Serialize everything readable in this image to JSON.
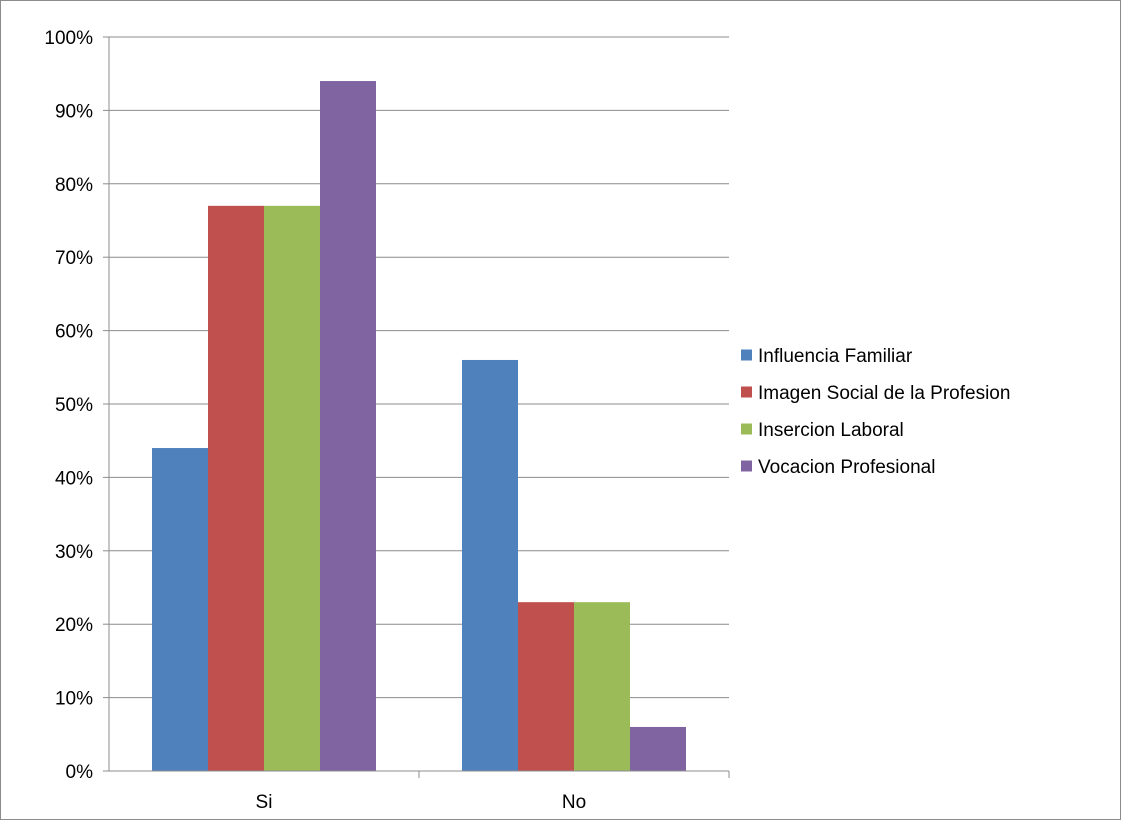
{
  "chart_data": {
    "type": "bar",
    "categories": [
      "Si",
      "No"
    ],
    "series": [
      {
        "name": "Influencia Familiar",
        "values": [
          44,
          56
        ],
        "color": "#4F81BD"
      },
      {
        "name": "Imagen Social de la Profesion",
        "values": [
          77,
          23
        ],
        "color": "#C0504D"
      },
      {
        "name": "Insercion Laboral",
        "values": [
          77,
          23
        ],
        "color": "#9BBB59"
      },
      {
        "name": "Vocacion Profesional",
        "values": [
          94,
          6
        ],
        "color": "#8064A2"
      }
    ],
    "yticks": [
      "0%",
      "10%",
      "20%",
      "30%",
      "40%",
      "50%",
      "60%",
      "70%",
      "80%",
      "90%",
      "100%"
    ],
    "ylim": [
      0,
      100
    ],
    "grid": true,
    "legend_position": "right",
    "title": "",
    "xlabel": "",
    "ylabel": ""
  }
}
